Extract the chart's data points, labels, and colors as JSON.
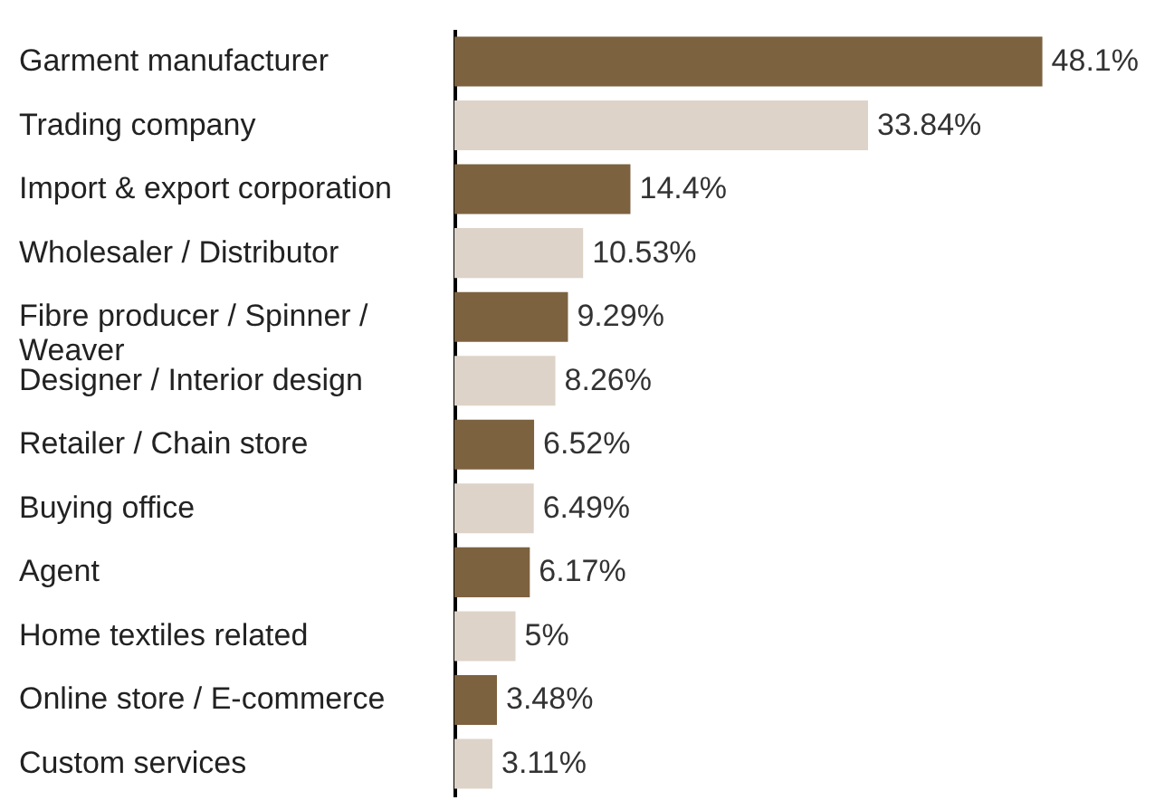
{
  "chart_data": {
    "type": "bar",
    "orientation": "horizontal",
    "categories": [
      "Garment manufacturer",
      "Trading company",
      "Import & export corporation",
      "Wholesaler / Distributor",
      "Fibre producer / Spinner / Weaver",
      "Designer / Interior design",
      "Retailer / Chain store",
      "Buying office",
      "Agent",
      "Home textiles related",
      "Online store / E-commerce",
      "Custom services"
    ],
    "values": [
      48.1,
      33.84,
      14.4,
      10.53,
      9.29,
      8.26,
      6.52,
      6.49,
      6.17,
      5,
      3.48,
      3.11
    ],
    "value_labels": [
      "48.1%",
      "33.84%",
      "14.4%",
      "10.53%",
      "9.29%",
      "8.26%",
      "6.52%",
      "6.49%",
      "6.17%",
      "5%",
      "3.48%",
      "3.11%"
    ],
    "colors": [
      "#7d6240",
      "#ddd3c8",
      "#7d6240",
      "#ddd3c8",
      "#7d6240",
      "#ddd3c8",
      "#7d6240",
      "#ddd3c8",
      "#7d6240",
      "#ddd3c8",
      "#7d6240",
      "#ddd3c8"
    ]
  }
}
